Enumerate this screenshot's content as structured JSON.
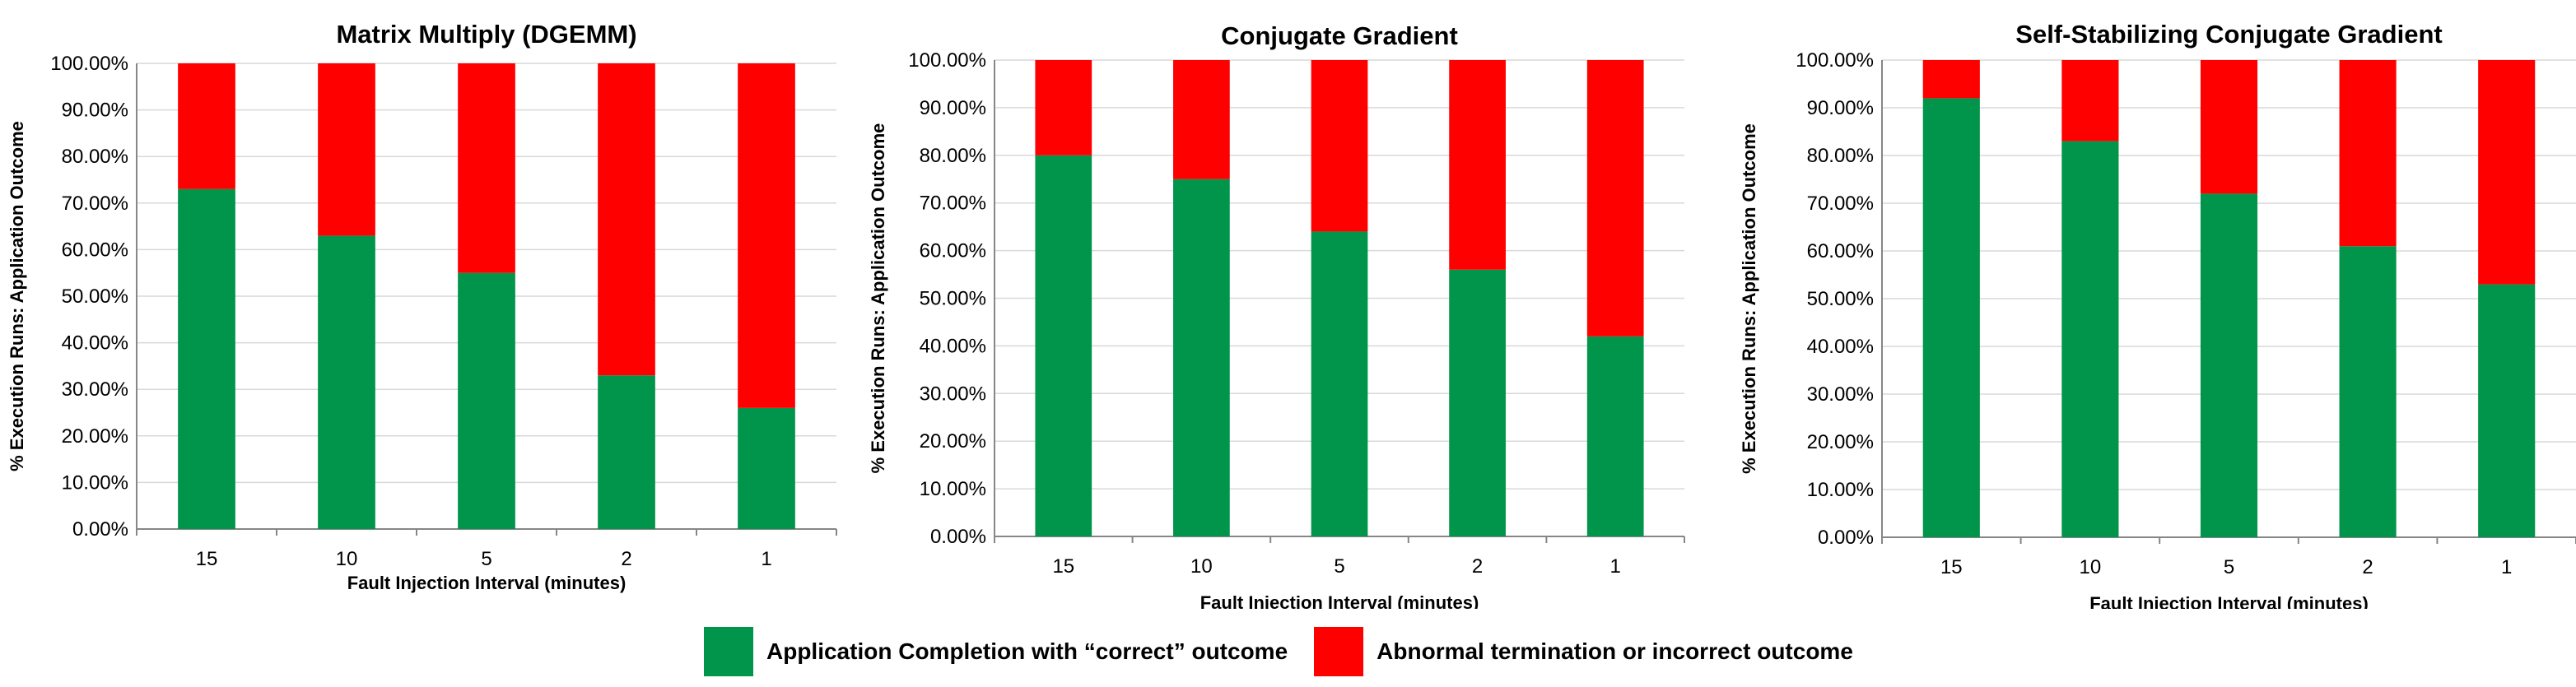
{
  "colors": {
    "correct": "#00954A",
    "abnormal": "#FF0000",
    "grid": "#D9D9D9",
    "axis": "#868686"
  },
  "legend": {
    "correct_label": "Application Completion with “correct” outcome",
    "abnormal_label": "Abnormal termination or incorrect outcome"
  },
  "chart_data": [
    {
      "type": "bar",
      "stacked": true,
      "title": "Matrix Multiply (DGEMM)",
      "xlabel": "Fault Injection Interval (minutes)",
      "ylabel": "% Execution Runs: Application Outcome",
      "categories": [
        "15",
        "10",
        "5",
        "2",
        "1"
      ],
      "ylim": [
        0,
        100
      ],
      "yticks": [
        "0.00%",
        "10.00%",
        "20.00%",
        "30.00%",
        "40.00%",
        "50.00%",
        "60.00%",
        "70.00%",
        "80.00%",
        "90.00%",
        "100.00%"
      ],
      "series": [
        {
          "name": "Application Completion with “correct” outcome",
          "values": [
            73,
            63,
            55,
            33,
            26
          ]
        },
        {
          "name": "Abnormal termination or incorrect outcome",
          "values": [
            27,
            37,
            45,
            67,
            74
          ]
        }
      ]
    },
    {
      "type": "bar",
      "stacked": true,
      "title": "Conjugate Gradient",
      "xlabel": "Fault Injection Interval (minutes)",
      "ylabel": "% Execution Runs: Application Outcome",
      "categories": [
        "15",
        "10",
        "5",
        "2",
        "1"
      ],
      "ylim": [
        0,
        100
      ],
      "yticks": [
        "0.00%",
        "10.00%",
        "20.00%",
        "30.00%",
        "40.00%",
        "50.00%",
        "60.00%",
        "70.00%",
        "80.00%",
        "90.00%",
        "100.00%"
      ],
      "series": [
        {
          "name": "Application Completion with “correct” outcome",
          "values": [
            80,
            75,
            64,
            56,
            42
          ]
        },
        {
          "name": "Abnormal termination or incorrect outcome",
          "values": [
            20,
            25,
            36,
            44,
            58
          ]
        }
      ]
    },
    {
      "type": "bar",
      "stacked": true,
      "title": "Self-Stabilizing Conjugate Gradient",
      "xlabel": "Fault Injection Interval (minutes)",
      "ylabel": "% Execution Runs: Application Outcome",
      "categories": [
        "15",
        "10",
        "5",
        "2",
        "1"
      ],
      "ylim": [
        0,
        100
      ],
      "yticks": [
        "0.00%",
        "10.00%",
        "20.00%",
        "30.00%",
        "40.00%",
        "50.00%",
        "60.00%",
        "70.00%",
        "80.00%",
        "90.00%",
        "100.00%"
      ],
      "series": [
        {
          "name": "Application Completion with “correct” outcome",
          "values": [
            92,
            83,
            72,
            61,
            53
          ]
        },
        {
          "name": "Abnormal termination or incorrect outcome",
          "values": [
            8,
            17,
            28,
            39,
            47
          ]
        }
      ]
    }
  ]
}
